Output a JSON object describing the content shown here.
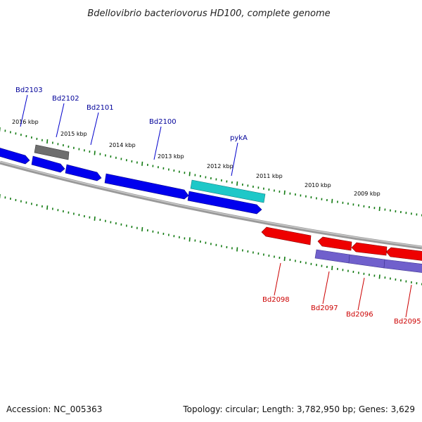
{
  "title": "Bdellovibrio bacteriovorus HD100, complete genome",
  "footer": {
    "accession": "Accession: NC_005363",
    "summary": "Topology: circular; Length: 3,782,950 bp; Genes: 3,629"
  },
  "colors": {
    "backbone": "#808080",
    "tick": "#117a11",
    "forward_gene": "#0000ee",
    "reverse_gene": "#ee0000",
    "other_gene": "#707070",
    "rna_gene": "#20c8c8",
    "reverse_cds": "#7060cc",
    "forward_label": "#000099",
    "reverse_label": "#cc0000"
  },
  "tick_labels": [
    "2016 kbp",
    "2015 kbp",
    "2014 kbp",
    "2013 kbp",
    "2012 kbp",
    "2011 kbp",
    "2010 kbp",
    "2009 kbp"
  ],
  "gene_labels": {
    "forward": [
      "Bd2103",
      "Bd2102",
      "Bd2101",
      "Bd2100",
      "pykA"
    ],
    "reverse": [
      "Bd2098",
      "Bd2097",
      "Bd2096",
      "Bd2095"
    ]
  }
}
